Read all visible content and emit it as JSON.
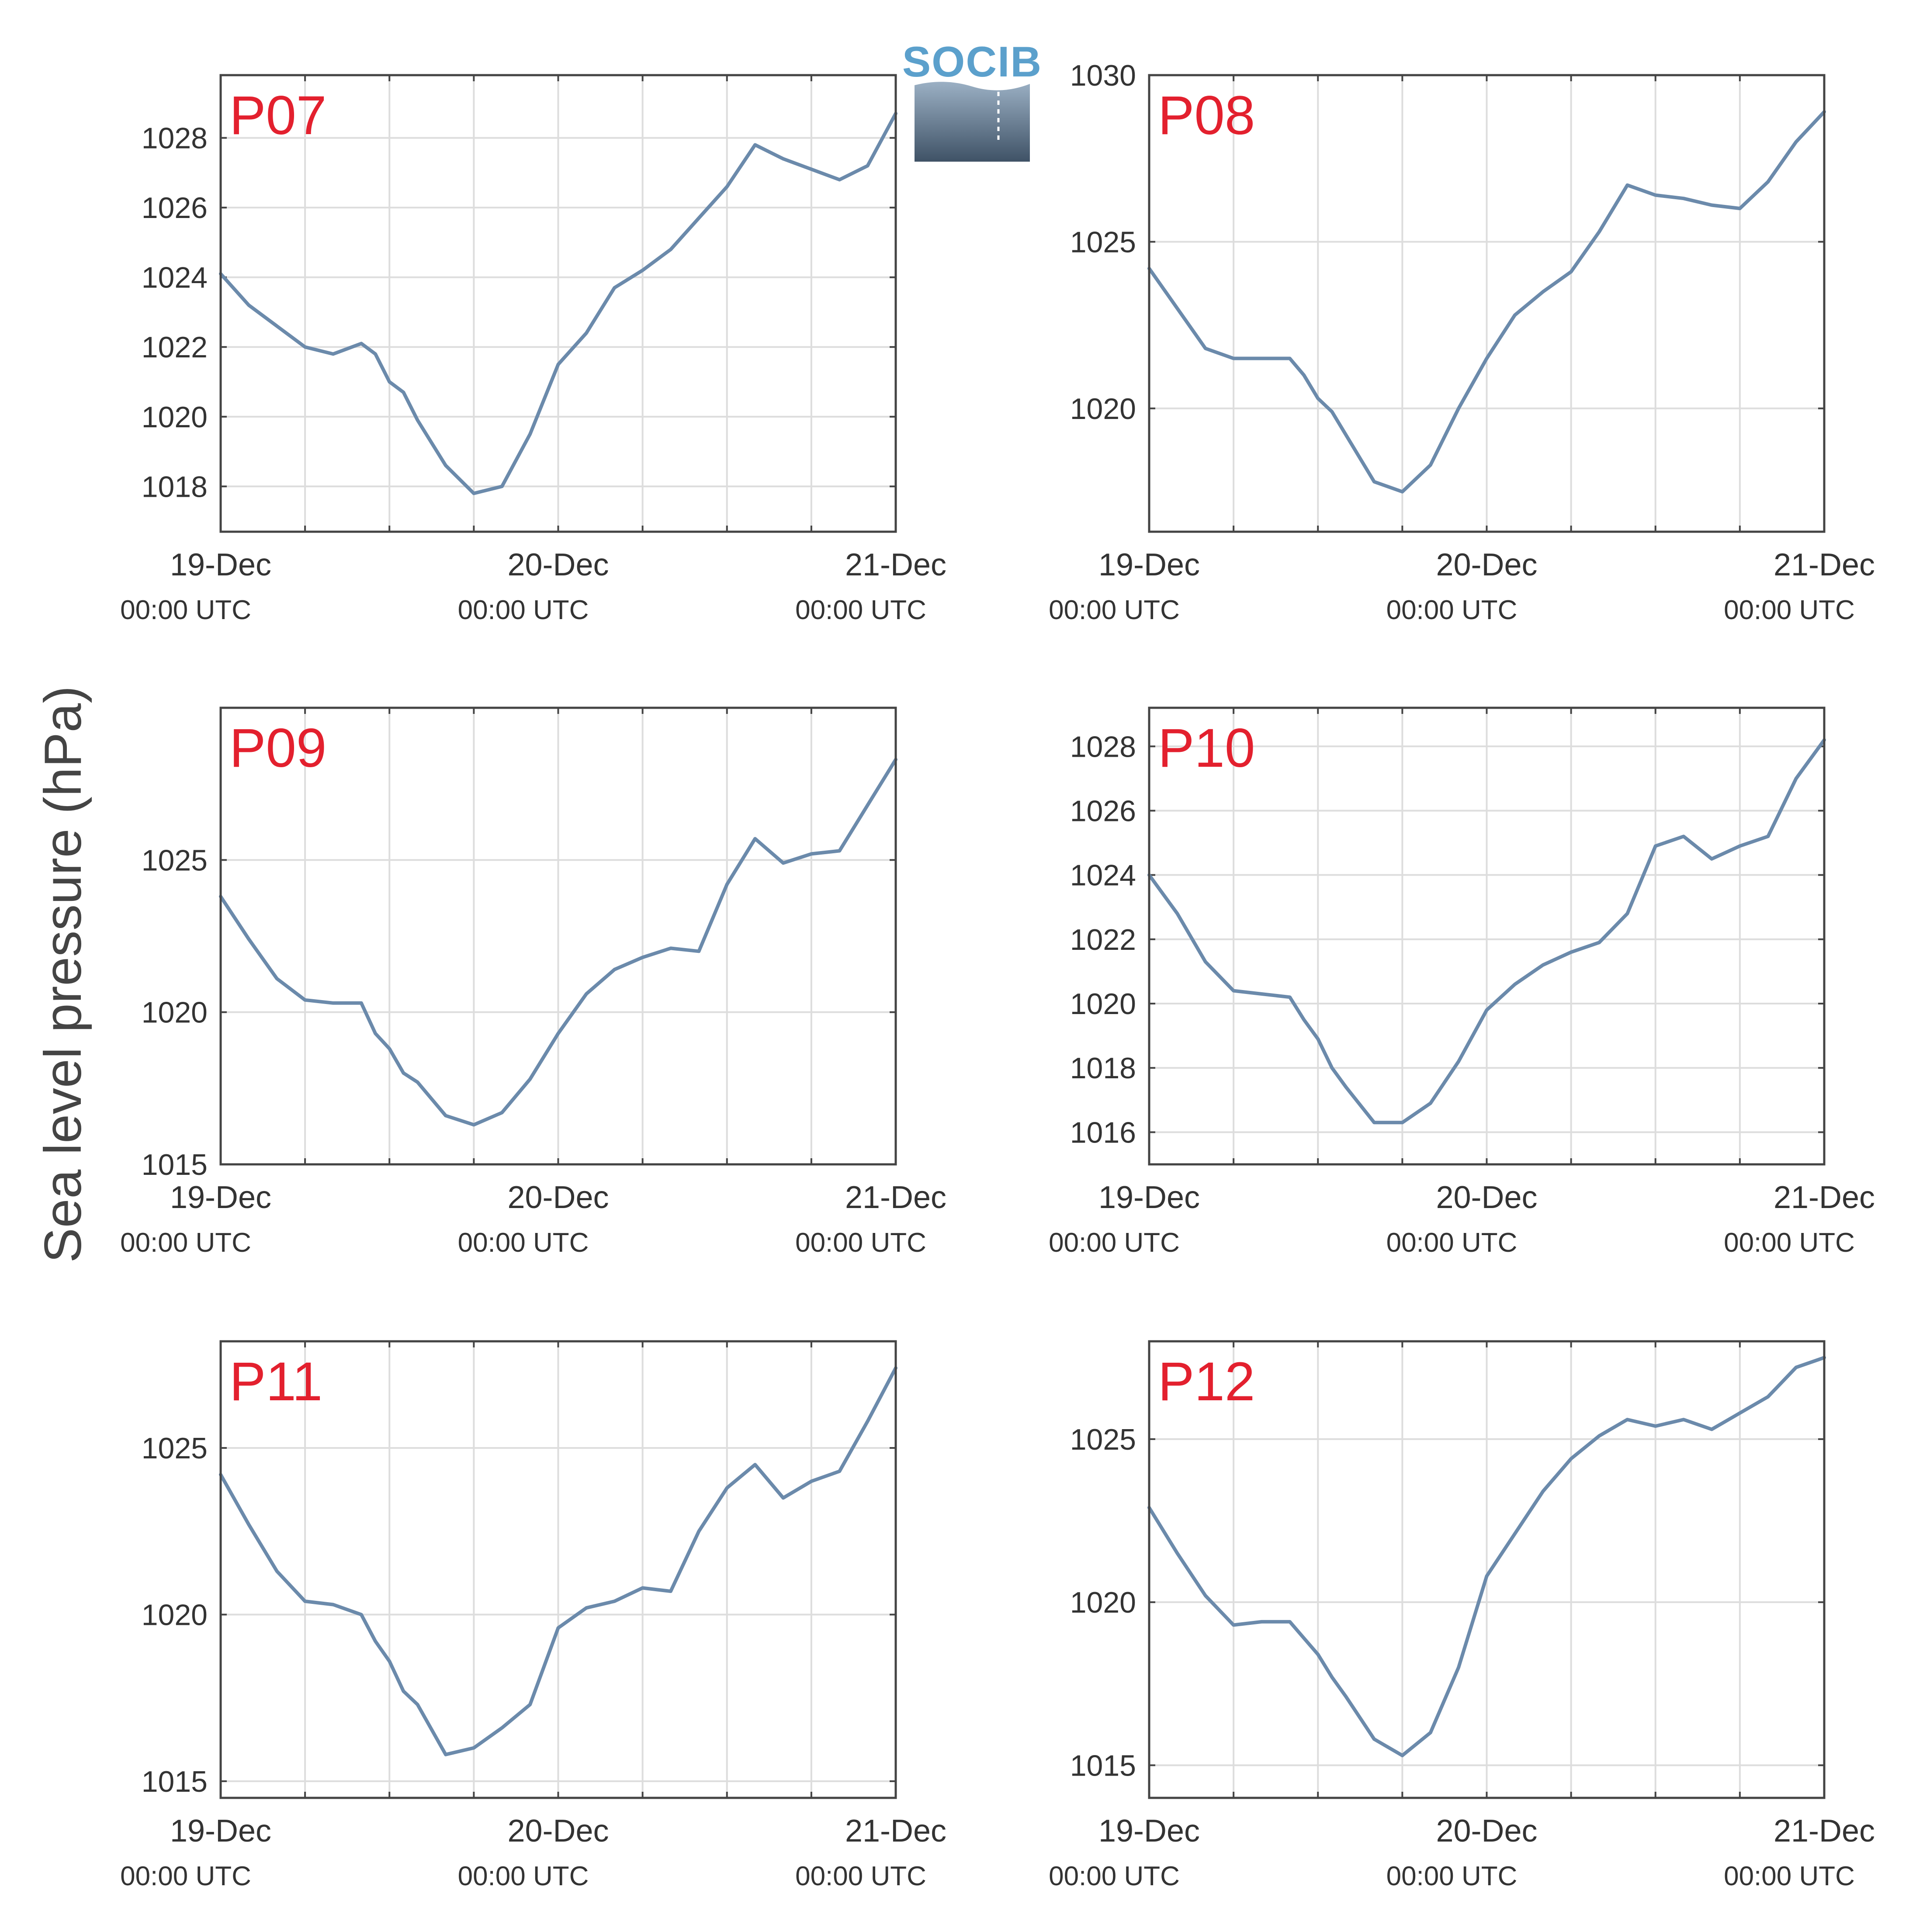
{
  "figure": {
    "ylabel": "Sea level pressure (hPa)",
    "logo_text": "SOCIB",
    "line_color": "#6b8aab",
    "panel_label_color": "#e3202e",
    "grid_color": "#dddddd",
    "axis_color": "#444444"
  },
  "chart_data": [
    {
      "type": "line",
      "panel_label": "P07",
      "x_ticks": [
        {
          "day": "19-Dec",
          "time": "00:00 UTC"
        },
        {
          "day": "20-Dec",
          "time": "00:00 UTC"
        },
        {
          "day": "21-Dec",
          "time": "00:00 UTC"
        }
      ],
      "x_hours": [
        0,
        2,
        4,
        6,
        8,
        10,
        11,
        12,
        13,
        14,
        16,
        18,
        20,
        22,
        24,
        26,
        28,
        30,
        32,
        34,
        36,
        38,
        40,
        42,
        44,
        46,
        48
      ],
      "values": [
        1024.1,
        1023.2,
        1022.6,
        1022.0,
        1021.8,
        1022.1,
        1021.8,
        1021.0,
        1020.7,
        1019.9,
        1018.6,
        1017.8,
        1018.0,
        1019.5,
        1021.5,
        1022.4,
        1023.7,
        1024.2,
        1024.8,
        1025.7,
        1026.6,
        1027.8,
        1027.4,
        1027.1,
        1026.8,
        1027.2,
        1028.7
      ],
      "yticks": [
        1018,
        1020,
        1022,
        1024,
        1026,
        1028
      ],
      "ylim": [
        1016.7,
        1029.8
      ]
    },
    {
      "type": "line",
      "panel_label": "P08",
      "x_ticks": [
        {
          "day": "19-Dec",
          "time": "00:00 UTC"
        },
        {
          "day": "20-Dec",
          "time": "00:00 UTC"
        },
        {
          "day": "21-Dec",
          "time": "00:00 UTC"
        }
      ],
      "x_hours": [
        0,
        2,
        4,
        6,
        8,
        10,
        11,
        12,
        13,
        14,
        16,
        18,
        20,
        22,
        24,
        26,
        28,
        30,
        32,
        34,
        36,
        38,
        40,
        42,
        44,
        46,
        48
      ],
      "values": [
        1024.2,
        1023.0,
        1021.8,
        1021.5,
        1021.5,
        1021.5,
        1021.0,
        1020.3,
        1019.9,
        1019.2,
        1017.8,
        1017.5,
        1018.3,
        1020.0,
        1021.5,
        1022.8,
        1023.5,
        1024.1,
        1025.3,
        1026.7,
        1026.4,
        1026.3,
        1026.1,
        1026.0,
        1026.8,
        1028.0,
        1028.9
      ],
      "yticks": [
        1020,
        1025,
        1030
      ],
      "ylim": [
        1016.3,
        1030.0
      ]
    },
    {
      "type": "line",
      "panel_label": "P09",
      "x_ticks": [
        {
          "day": "19-Dec",
          "time": "00:00 UTC"
        },
        {
          "day": "20-Dec",
          "time": "00:00 UTC"
        },
        {
          "day": "21-Dec",
          "time": "00:00 UTC"
        }
      ],
      "x_hours": [
        0,
        2,
        4,
        6,
        8,
        10,
        11,
        12,
        13,
        14,
        16,
        18,
        20,
        22,
        24,
        26,
        28,
        30,
        32,
        34,
        36,
        38,
        40,
        42,
        44,
        46,
        48
      ],
      "values": [
        1023.8,
        1022.4,
        1021.1,
        1020.4,
        1020.3,
        1020.3,
        1019.3,
        1018.8,
        1018.0,
        1017.7,
        1016.6,
        1016.3,
        1016.7,
        1017.8,
        1019.3,
        1020.6,
        1021.4,
        1021.8,
        1022.1,
        1022.0,
        1024.2,
        1025.7,
        1024.9,
        1025.2,
        1025.3,
        1026.8,
        1028.3
      ],
      "yticks": [
        1015,
        1020,
        1025
      ],
      "ylim": [
        1015.0,
        1030.0
      ]
    },
    {
      "type": "line",
      "panel_label": "P10",
      "x_ticks": [
        {
          "day": "19-Dec",
          "time": "00:00 UTC"
        },
        {
          "day": "20-Dec",
          "time": "00:00 UTC"
        },
        {
          "day": "21-Dec",
          "time": "00:00 UTC"
        }
      ],
      "x_hours": [
        0,
        2,
        4,
        6,
        8,
        10,
        11,
        12,
        13,
        14,
        16,
        18,
        20,
        22,
        24,
        26,
        28,
        30,
        32,
        34,
        36,
        38,
        40,
        42,
        44,
        46,
        48
      ],
      "values": [
        1024.0,
        1022.8,
        1021.3,
        1020.4,
        1020.3,
        1020.2,
        1019.5,
        1018.9,
        1018.0,
        1017.4,
        1016.3,
        1016.3,
        1016.9,
        1018.2,
        1019.8,
        1020.6,
        1021.2,
        1021.6,
        1021.9,
        1022.8,
        1024.9,
        1025.2,
        1024.5,
        1024.9,
        1025.2,
        1027.0,
        1028.2
      ],
      "yticks": [
        1016,
        1018,
        1020,
        1022,
        1024,
        1026,
        1028
      ],
      "ylim": [
        1015.0,
        1029.2
      ]
    },
    {
      "type": "line",
      "panel_label": "P11",
      "x_ticks": [
        {
          "day": "19-Dec",
          "time": "00:00 UTC"
        },
        {
          "day": "20-Dec",
          "time": "00:00 UTC"
        },
        {
          "day": "21-Dec",
          "time": "00:00 UTC"
        }
      ],
      "x_hours": [
        0,
        2,
        4,
        6,
        8,
        10,
        11,
        12,
        13,
        14,
        16,
        18,
        20,
        22,
        24,
        26,
        28,
        30,
        32,
        34,
        36,
        38,
        40,
        42,
        44,
        46,
        48
      ],
      "values": [
        1024.2,
        1022.7,
        1021.3,
        1020.4,
        1020.3,
        1020.0,
        1019.2,
        1018.6,
        1017.7,
        1017.3,
        1015.8,
        1016.0,
        1016.6,
        1017.3,
        1019.6,
        1020.2,
        1020.4,
        1020.8,
        1020.7,
        1022.5,
        1023.8,
        1024.5,
        1023.5,
        1024.0,
        1024.3,
        1025.8,
        1027.4
      ],
      "yticks": [
        1015,
        1020,
        1025
      ],
      "ylim": [
        1014.5,
        1028.2
      ]
    },
    {
      "type": "line",
      "panel_label": "P12",
      "x_ticks": [
        {
          "day": "19-Dec",
          "time": "00:00 UTC"
        },
        {
          "day": "20-Dec",
          "time": "00:00 UTC"
        },
        {
          "day": "21-Dec",
          "time": "00:00 UTC"
        }
      ],
      "x_hours": [
        0,
        2,
        4,
        6,
        8,
        10,
        11,
        12,
        13,
        14,
        16,
        18,
        20,
        22,
        24,
        26,
        28,
        30,
        32,
        34,
        36,
        38,
        40,
        42,
        44,
        46,
        48
      ],
      "values": [
        1022.9,
        1021.5,
        1020.2,
        1019.3,
        1019.4,
        1019.4,
        1018.9,
        1018.4,
        1017.7,
        1017.1,
        1015.8,
        1015.3,
        1016.0,
        1018.0,
        1020.8,
        1022.1,
        1023.4,
        1024.4,
        1025.1,
        1025.6,
        1025.4,
        1025.6,
        1025.3,
        1025.8,
        1026.3,
        1027.2,
        1027.5
      ],
      "yticks": [
        1015,
        1020,
        1025
      ],
      "ylim": [
        1014.0,
        1028.0
      ]
    }
  ]
}
